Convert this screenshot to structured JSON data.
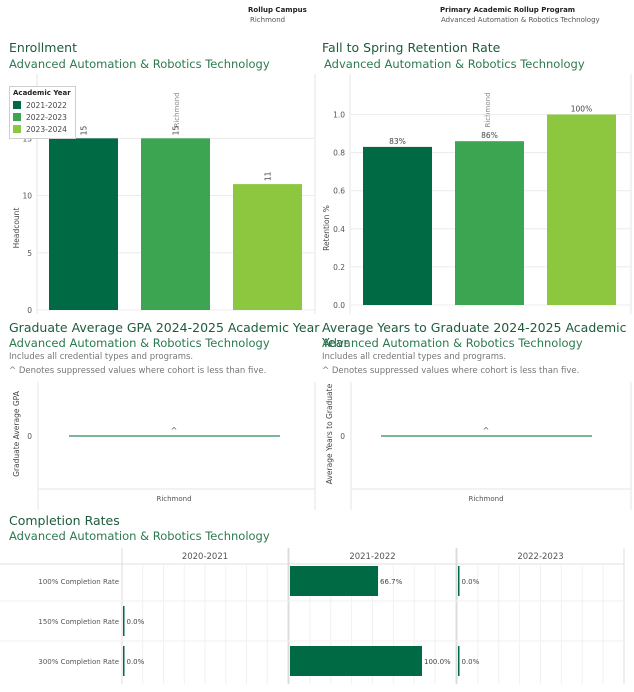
{
  "filters": {
    "campus": {
      "label": "Rollup Campus",
      "value": "Richmond"
    },
    "program": {
      "label": "Primary Academic Rollup Program",
      "value": "Advanced Automation & Robotics Technology"
    }
  },
  "colors": {
    "y2021": "#006a44",
    "y2022": "#3ca552",
    "y2023": "#8dc63f",
    "gpa_line": "#2e8b57"
  },
  "enrollment": {
    "title": "Enrollment",
    "subtitle": "Advanced Automation & Robotics Technology",
    "column_header": "Richmond",
    "legend_title": "Academic Year",
    "legend": [
      "2021-2022",
      "2022-2023",
      "2023-2024"
    ]
  },
  "retention": {
    "title": "Fall to Spring Retention Rate",
    "subtitle": "Advanced Automation & Robotics Technology",
    "column_header": "Richmond"
  },
  "gpa": {
    "title": "Graduate Average GPA 2024-2025 Academic Year",
    "subtitle": "Advanced Automation & Robotics Technology",
    "note1": "Includes all credential types and programs.",
    "note2": "^ Denotes suppressed values where cohort is less than five."
  },
  "years": {
    "title": "Average Years to Graduate 2024-2025 Academic Year",
    "subtitle": "Advanced Automation & Robotics Technology",
    "note1": "Includes all credential types and programs.",
    "note2": "^ Denotes suppressed values where cohort is less than five."
  },
  "completion": {
    "title": "Completion Rates",
    "subtitle": "Advanced Automation & Robotics Technology"
  },
  "chart_data": [
    {
      "type": "bar",
      "categories": [
        "2021-2022",
        "2022-2023",
        "2023-2024"
      ],
      "values": [
        15,
        15,
        11
      ],
      "value_labels": [
        "15",
        "15",
        "11"
      ],
      "ylabel": "Headcount",
      "ylim": [
        0,
        18
      ],
      "yticks": [
        0,
        5,
        10,
        15
      ],
      "ytick_labels": [
        "0",
        "5",
        "10",
        "15"
      ],
      "grid": true,
      "legend": "top-left"
    },
    {
      "type": "bar",
      "categories": [
        "2021-2022",
        "2022-2023",
        "2023-2024"
      ],
      "values": [
        0.83,
        0.86,
        1.0
      ],
      "value_labels": [
        "83%",
        "86%",
        "100%"
      ],
      "ylabel": "Retention %",
      "ylim": [
        0,
        1.05
      ],
      "yticks": [
        0,
        0.2,
        0.4,
        0.6,
        0.8,
        1.0
      ],
      "ytick_labels": [
        "0.0",
        "0.2",
        "0.4",
        "0.6",
        "0.8",
        "1.0"
      ],
      "grid": true
    },
    {
      "type": "bar",
      "categories": [
        "Richmond"
      ],
      "values": [
        0
      ],
      "value_labels": [
        "^"
      ],
      "ylabel": "Graduate Average GPA",
      "yticks": [
        0
      ],
      "ytick_labels": [
        "0"
      ]
    },
    {
      "type": "bar",
      "categories": [
        "Richmond"
      ],
      "values": [
        0
      ],
      "value_labels": [
        "^"
      ],
      "ylabel": "Average Years to Graduate",
      "yticks": [
        0
      ],
      "ytick_labels": [
        "0"
      ]
    },
    {
      "type": "bar",
      "orientation": "horizontal",
      "columns": [
        "2020-2021",
        "2021-2022",
        "2022-2023"
      ],
      "rows": [
        "100% Completion Rate",
        "150% Completion Rate",
        "300% Completion Rate"
      ],
      "values": [
        [
          null,
          0.667,
          0.0
        ],
        [
          0.0,
          null,
          null
        ],
        [
          0.0,
          1.0,
          0.0
        ]
      ],
      "value_labels": [
        [
          "",
          "66.7%",
          "0.0%"
        ],
        [
          "0.0%",
          "",
          ""
        ],
        [
          "0.0%",
          "100.0%",
          "0.0%"
        ]
      ],
      "xlim": [
        0,
        1.0
      ],
      "grid": true
    }
  ]
}
